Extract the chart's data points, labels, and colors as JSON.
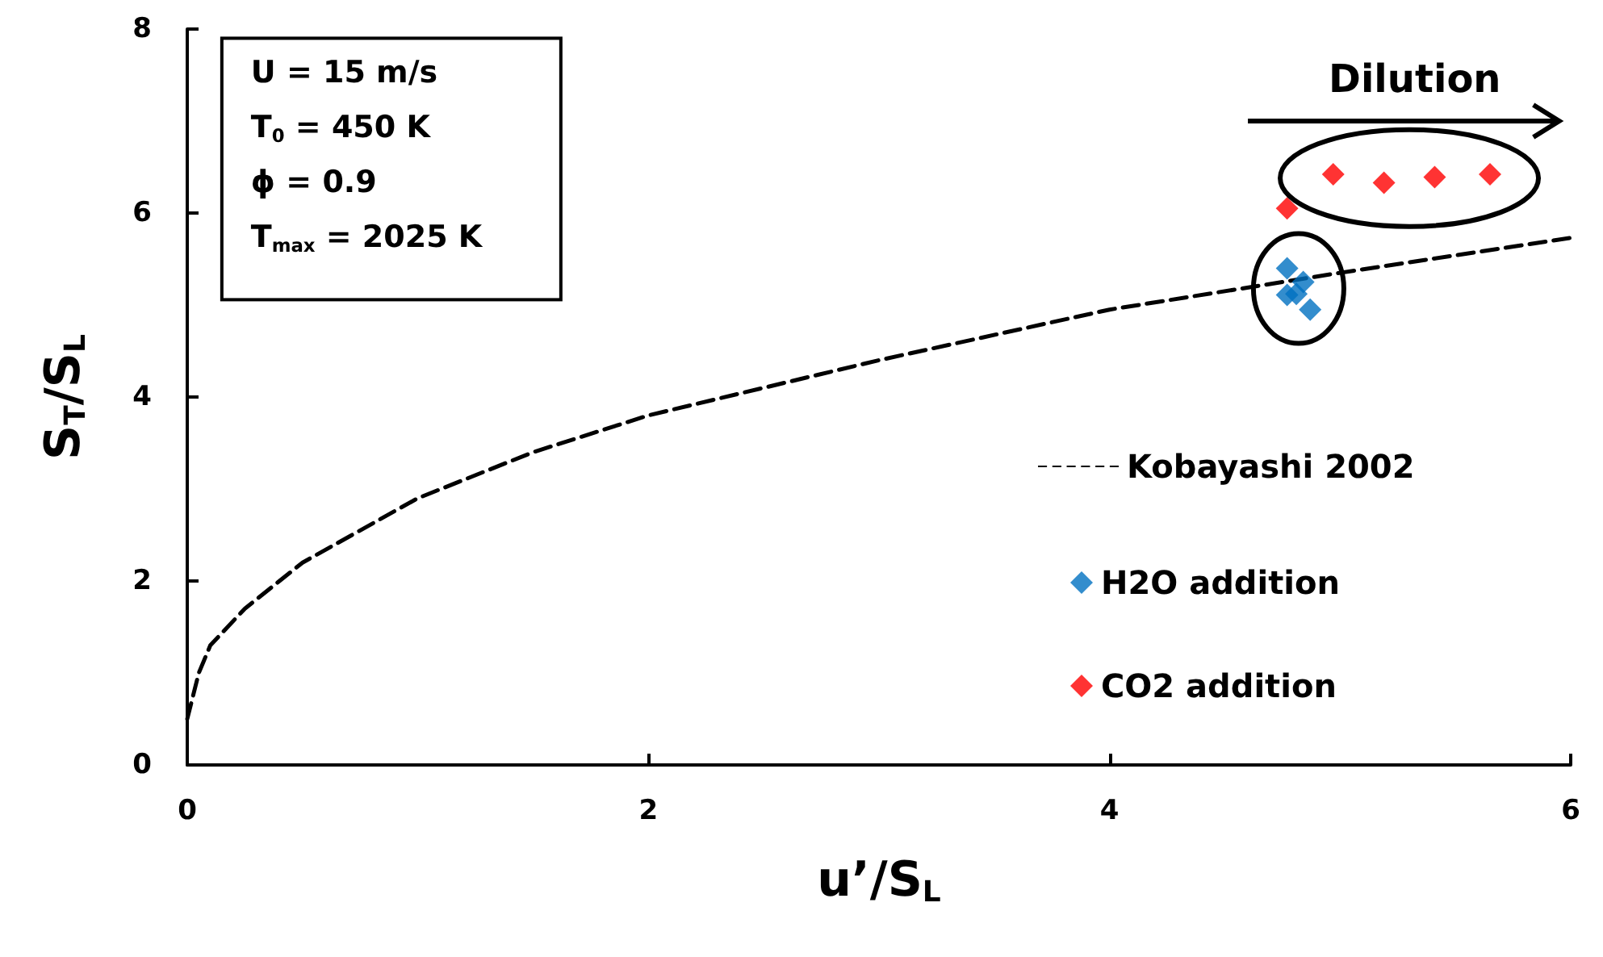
{
  "chart_data": {
    "type": "scatter",
    "xlabel": "u’/S$_{L}$",
    "ylabel": "S$_{T}$/S$_{L}$",
    "xlim": [
      0,
      6
    ],
    "xticks": [
      0,
      2,
      4,
      6
    ],
    "ylim": [
      0,
      8
    ],
    "yticks": [
      0,
      2,
      4,
      6,
      8
    ],
    "grid": false,
    "legend": "right",
    "marker": "diamond",
    "annotations": [
      "U = 15 m/s",
      "T$_{0}$ = 450 K",
      "ϕ = 0.9",
      "T$_{max}$ = 2025 K",
      "Dilution"
    ],
    "series": [
      {
        "name": "Kobayashi 2002",
        "type": "line",
        "color": "#000000",
        "line_style": "dashed",
        "marker": "none",
        "x": [
          0,
          0.05,
          0.1,
          0.25,
          0.5,
          1,
          1.5,
          2,
          3,
          4,
          5,
          6
        ],
        "values": [
          0.5,
          1.0,
          1.3,
          1.7,
          2.2,
          2.9,
          3.4,
          3.8,
          4.4,
          4.95,
          5.35,
          5.73
        ]
      },
      {
        "name": "H2O addition",
        "color": "#0070c0",
        "x": [
          4.77,
          4.84,
          4.77,
          4.81,
          4.87
        ],
        "values": [
          5.4,
          5.25,
          5.11,
          5.12,
          4.95
        ]
      },
      {
        "name": "CO2 addition",
        "color": "#ff0000",
        "x": [
          4.77,
          4.97,
          5.19,
          5.41,
          5.65
        ],
        "values": [
          6.05,
          6.42,
          6.33,
          6.39,
          6.42
        ]
      }
    ]
  }
}
